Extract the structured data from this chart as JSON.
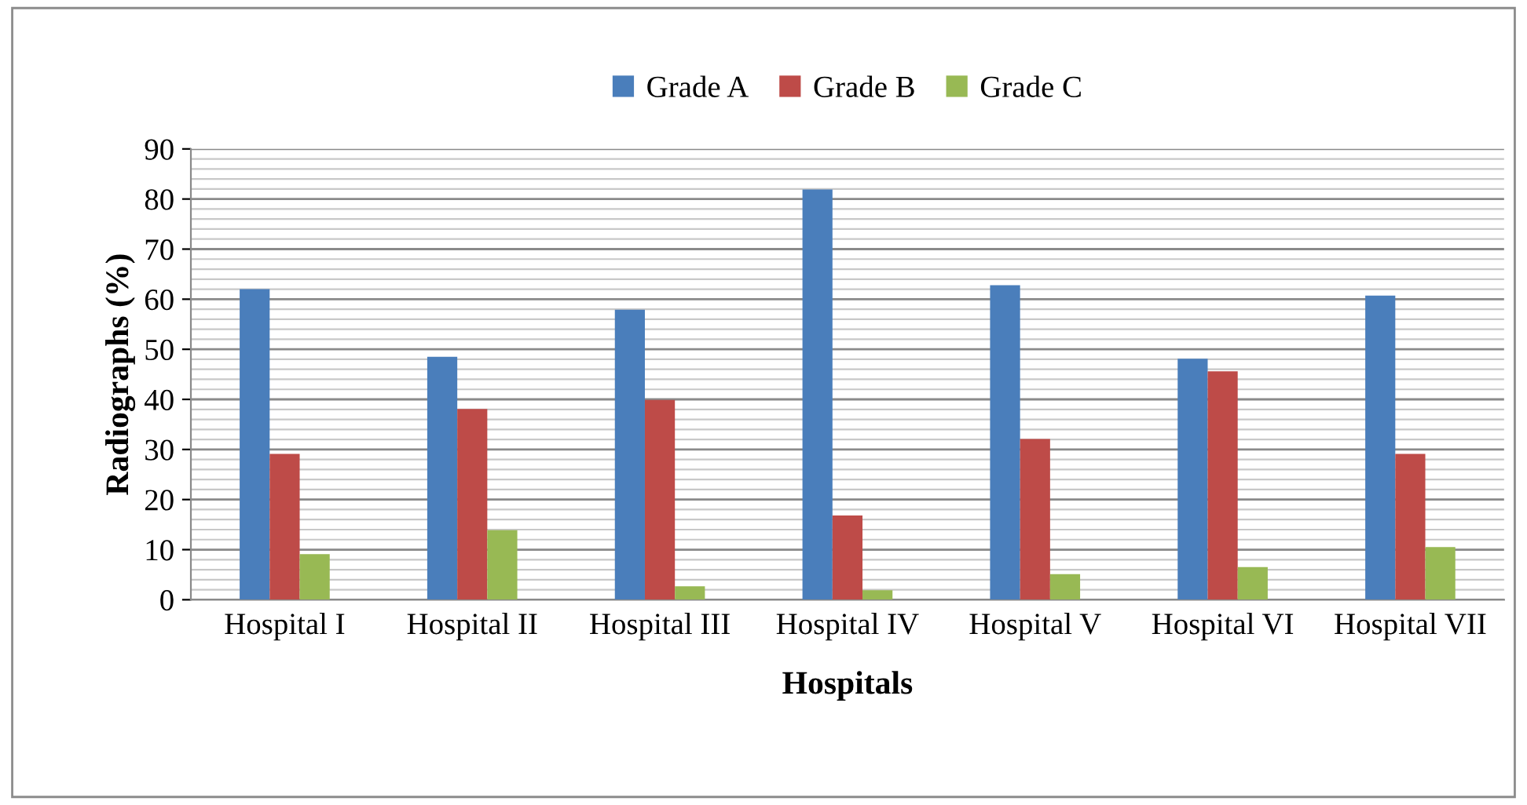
{
  "chart_data": {
    "type": "bar",
    "categories": [
      "Hospital I",
      "Hospital II",
      "Hospital III",
      "Hospital IV",
      "Hospital V",
      "Hospital VI",
      "Hospital VII"
    ],
    "series": [
      {
        "name": "Grade A",
        "color": "#4a7ebb",
        "values": [
          62.0,
          48.5,
          57.9,
          81.9,
          62.8,
          48.1,
          60.7
        ]
      },
      {
        "name": "Grade B",
        "color": "#be4b48",
        "values": [
          29.1,
          38.1,
          39.9,
          16.8,
          32.1,
          45.6,
          29.1
        ]
      },
      {
        "name": "Grade C",
        "color": "#98b954",
        "values": [
          9.1,
          13.9,
          2.7,
          1.9,
          5.1,
          6.5,
          10.5
        ]
      }
    ],
    "xlabel": "Hospitals",
    "ylabel": "Radiographs (%)",
    "ylim": [
      0,
      90
    ],
    "yticks": [
      0,
      10,
      20,
      30,
      40,
      50,
      60,
      70,
      80,
      90
    ],
    "grid": "y",
    "legend": "top"
  }
}
